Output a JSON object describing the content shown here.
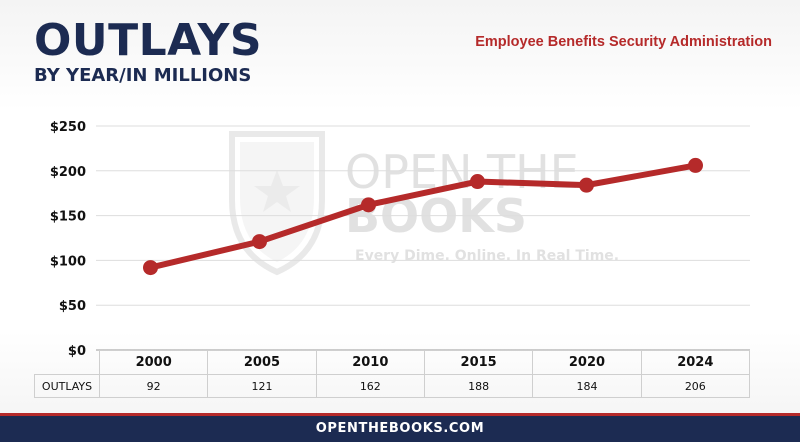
{
  "header": {
    "title": "OUTLAYS",
    "subtitle": "BY YEAR/IN MILLIONS",
    "agency": "Employee Benefits Security Administration"
  },
  "watermark": {
    "line1": "OPEN THE",
    "line2": "BOOKS",
    "tagline": "Every Dime. Online. In Real Time."
  },
  "table": {
    "row_label": "OUTLAYS"
  },
  "footer": {
    "site": "OPENTHEBOOKS.COM"
  },
  "colors": {
    "navy": "#1c2b52",
    "red": "#b52a2a"
  },
  "chart_data": {
    "type": "line",
    "title": "OUTLAYS",
    "subtitle": "BY YEAR/IN MILLIONS",
    "categories": [
      "2000",
      "2005",
      "2010",
      "2015",
      "2020",
      "2024"
    ],
    "series": [
      {
        "name": "OUTLAYS",
        "values": [
          92,
          121,
          162,
          188,
          184,
          206
        ]
      }
    ],
    "value_labels": [
      "92",
      "121",
      "162",
      "188",
      "184",
      "206"
    ],
    "yticks": [
      0,
      50,
      100,
      150,
      200,
      250
    ],
    "ytick_labels": [
      "$0",
      "$50",
      "$100",
      "$150",
      "$200",
      "$250"
    ],
    "ylim": [
      0,
      250
    ],
    "grid": true,
    "line_color": "#b52a2a"
  }
}
